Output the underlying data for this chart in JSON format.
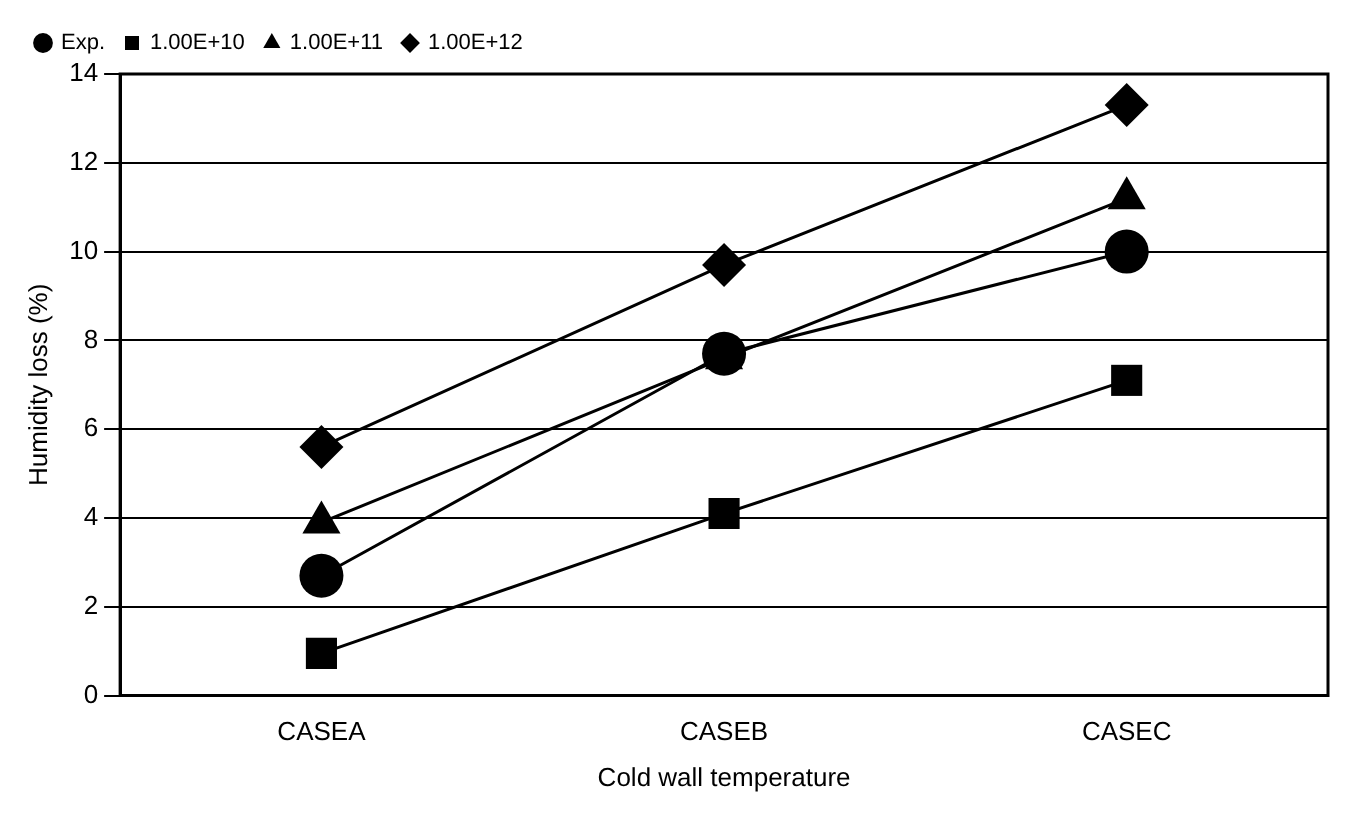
{
  "chart_data": {
    "type": "line",
    "xlabel": "Cold wall temperature",
    "ylabel": "Humidity loss (%)",
    "categories": [
      "CASEA",
      "CASEB",
      "CASEC"
    ],
    "series": [
      {
        "name": "Exp.",
        "color": "#000000",
        "marker": "circle",
        "values": [
          2.7,
          7.7,
          10.0
        ]
      },
      {
        "name": "1.00E+10",
        "color": "#000000",
        "marker": "square",
        "values": [
          0.95,
          4.1,
          7.1
        ]
      },
      {
        "name": "1.00E+11",
        "color": "#000000",
        "marker": "triangle",
        "values": [
          3.9,
          7.6,
          11.2
        ]
      },
      {
        "name": "1.00E+12",
        "color": "#000000",
        "marker": "diamond",
        "values": [
          5.6,
          9.7,
          13.3
        ]
      }
    ],
    "ylim": [
      0,
      14
    ],
    "yticks": [
      0,
      2,
      4,
      6,
      8,
      10,
      12,
      14
    ],
    "grid": "y",
    "legend": "top left",
    "line_style": "solid"
  }
}
